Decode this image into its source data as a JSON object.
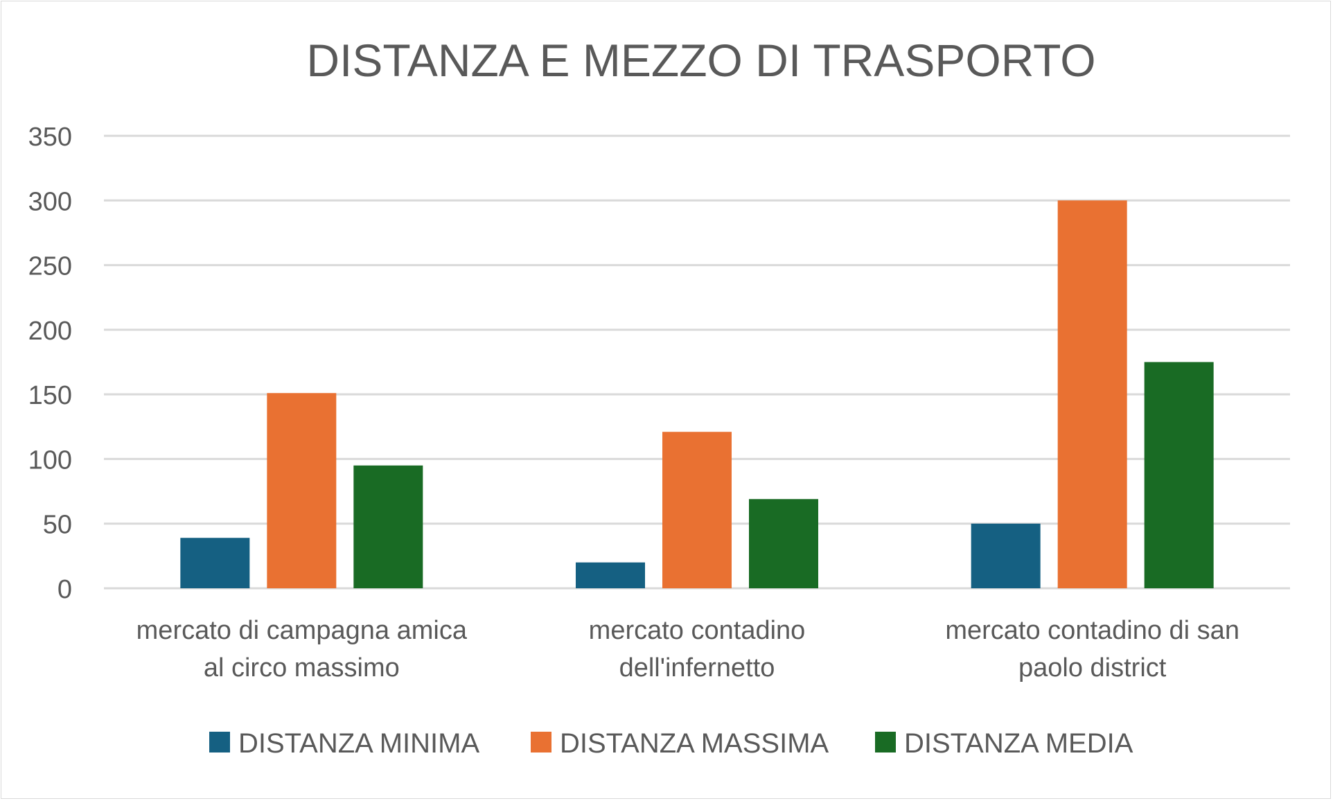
{
  "chart_data": {
    "type": "bar",
    "title": "DISTANZA E MEZZO DI TRASPORTO",
    "xlabel": "",
    "ylabel": "",
    "ylim": [
      0,
      350
    ],
    "yticks": [
      "0",
      "50",
      "100",
      "150",
      "200",
      "250",
      "300",
      "350"
    ],
    "grid": true,
    "legend_position": "bottom",
    "categories": [
      [
        "mercato di campagna amica",
        "al circo massimo"
      ],
      [
        "mercato contadino",
        "dell'infernetto"
      ],
      [
        "mercato contadino di san",
        "paolo district"
      ]
    ],
    "series": [
      {
        "name": "DISTANZA MINIMA",
        "color": "#156082",
        "values": [
          39,
          20,
          50
        ]
      },
      {
        "name": "DISTANZA MASSIMA",
        "color": "#E97132",
        "values": [
          151,
          121,
          300
        ]
      },
      {
        "name": "DISTANZA MEDIA",
        "color": "#196B24",
        "values": [
          95,
          69,
          175
        ]
      }
    ]
  }
}
